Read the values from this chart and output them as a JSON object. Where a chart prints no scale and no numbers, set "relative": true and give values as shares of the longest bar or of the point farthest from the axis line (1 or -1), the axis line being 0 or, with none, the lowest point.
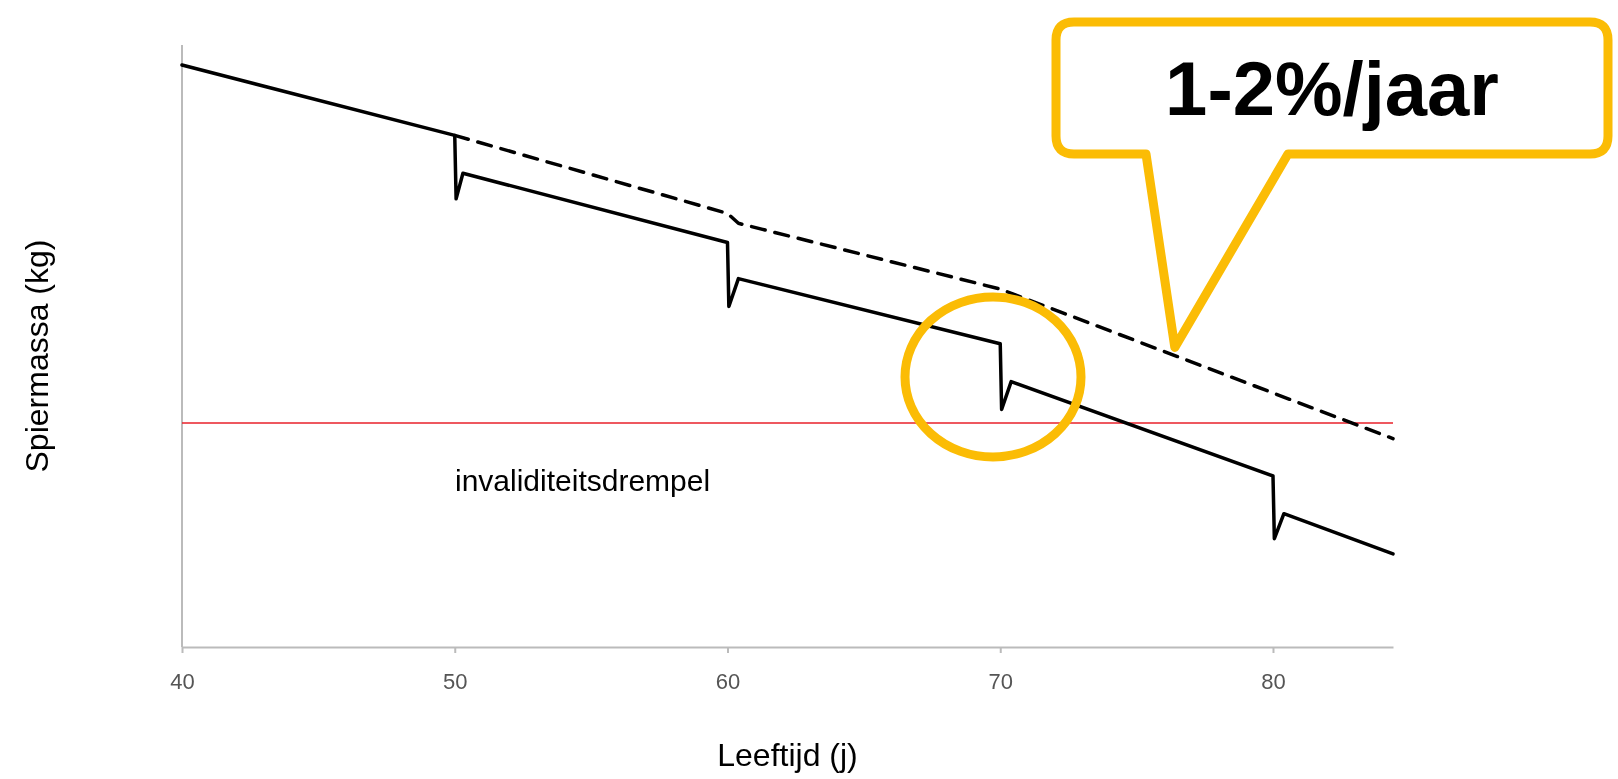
{
  "chart_data": {
    "type": "line",
    "relative": true,
    "xlabel": "Leeftijd (j)",
    "ylabel": "Spiermassa (kg)",
    "xlim": [
      40,
      84.4
    ],
    "xticks": [
      40,
      50,
      60,
      70,
      80
    ],
    "marker": "none",
    "grid": false,
    "series": [
      {
        "color": "#000000",
        "line_style": "solid",
        "x": [
          40,
          50,
          50.05,
          50.3,
          60,
          60.05,
          60.4,
          70,
          70.05,
          70.4,
          80,
          80.05,
          80.4,
          84.4
        ],
        "values": [
          1.0,
          0.879,
          0.77,
          0.814,
          0.695,
          0.585,
          0.633,
          0.521,
          0.408,
          0.456,
          0.294,
          0.186,
          0.229,
          0.16
        ]
      },
      {
        "color": "#000000",
        "line_style": "dashed",
        "x": [
          50,
          60,
          60.4,
          70,
          84.4
        ],
        "values": [
          0.879,
          0.745,
          0.728,
          0.615,
          0.358
        ]
      }
    ],
    "ref_lines": [
      {
        "axis": "y",
        "value": 0.385,
        "label": "invaliditeitsdrempel",
        "color": "#e8202a"
      }
    ],
    "annotations": [
      {
        "text": "1-2%/jaar",
        "x": 76.4,
        "y": 0.501
      }
    ]
  }
}
